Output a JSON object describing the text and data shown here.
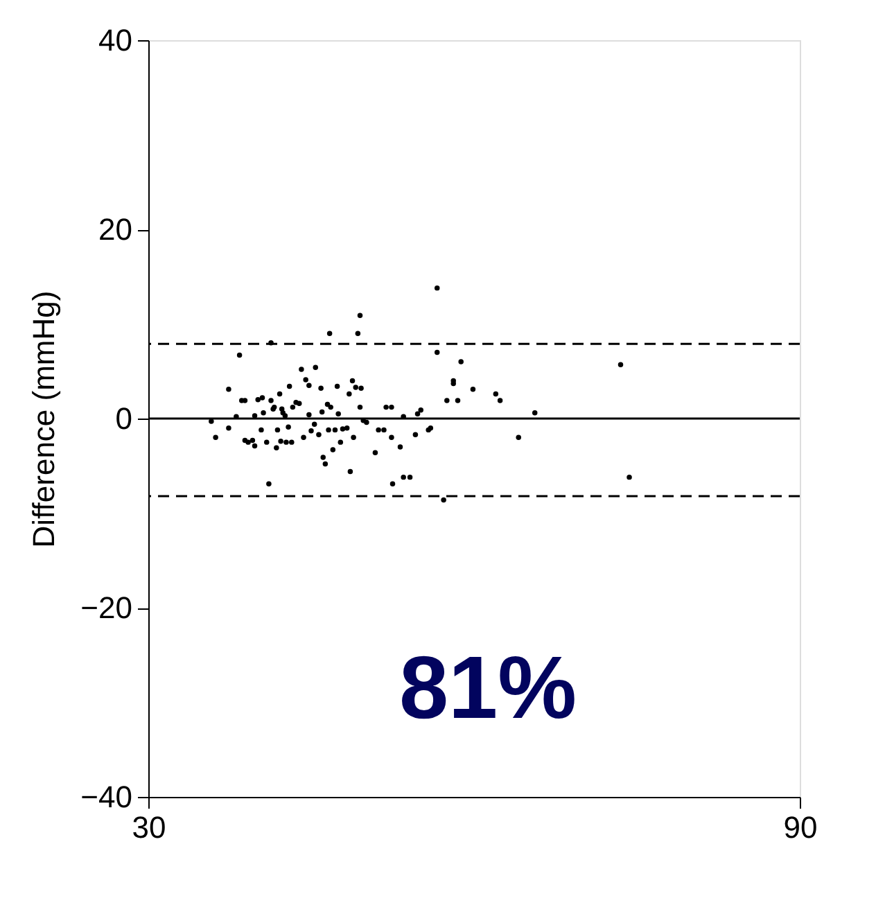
{
  "chart_data": {
    "type": "scatter",
    "ylabel": "Difference (mmHg)",
    "xlim": [
      30,
      90
    ],
    "xticks": [
      30,
      90
    ],
    "ylim": [
      -40,
      40
    ],
    "yticks": [
      -40,
      -20,
      0,
      20,
      40
    ],
    "grid": false,
    "marker": "circle",
    "series": [
      {
        "color": "#000000",
        "x": [
          35.8,
          36.2,
          37.4,
          37.4,
          38.1,
          38.4,
          38.6,
          38.9,
          38.9,
          39.2,
          39.6,
          39.8,
          39.8,
          40.1,
          40.4,
          40.5,
          40.6,
          40.9,
          41.1,
          41.3,
          41.5,
          41.6,
          41.8,
          41.9,
          42.1,
          42.2,
          42.3,
          42.4,
          42.6,
          42.7,
          42.9,
          43.0,
          43.2,
          43.3,
          43.6,
          43.9,
          44.1,
          44.3,
          44.5,
          44.8,
          44.8,
          45.0,
          45.3,
          45.4,
          45.7,
          45.9,
          46.0,
          46.1,
          46.3,
          46.5,
          46.6,
          46.7,
          46.8,
          47.0,
          47.2,
          47.4,
          47.5,
          47.7,
          47.9,
          48.3,
          48.5,
          48.6,
          48.8,
          48.9,
          49.1,
          49.3,
          49.5,
          49.5,
          49.6,
          49.8,
          50.1,
          50.9,
          51.2,
          51.7,
          51.9,
          52.4,
          52.4,
          52.5,
          53.2,
          53.5,
          53.5,
          54.1,
          54.6,
          54.8,
          55.1,
          55.8,
          56.0,
          56.6,
          56.6,
          57.2,
          57.5,
          58.1,
          58.1,
          58.5,
          58.8,
          59.9,
          62.0,
          62.4,
          64.1,
          65.6,
          73.5,
          74.3,
          41.3
        ],
        "values": [
          -0.3,
          -2.0,
          3.1,
          -1.0,
          0.2,
          6.7,
          1.9,
          1.9,
          -2.3,
          -2.5,
          -2.3,
          -2.9,
          0.3,
          2.0,
          -1.2,
          2.2,
          0.6,
          -2.5,
          -6.9,
          1.9,
          1.0,
          1.2,
          -3.1,
          -1.2,
          2.6,
          -2.4,
          1.0,
          0.6,
          0.3,
          -2.5,
          -0.9,
          3.4,
          -2.5,
          1.2,
          1.7,
          1.6,
          5.2,
          -2.0,
          4.1,
          3.5,
          0.4,
          -1.3,
          -0.6,
          5.4,
          -1.7,
          3.2,
          0.7,
          -4.1,
          -4.8,
          1.5,
          -1.2,
          9.0,
          1.2,
          -3.3,
          -1.2,
          3.4,
          0.5,
          -2.5,
          -1.1,
          -1.0,
          2.6,
          -5.6,
          4.0,
          -2.0,
          3.3,
          9.0,
          10.9,
          1.2,
          3.2,
          -0.2,
          -0.4,
          -3.6,
          -1.2,
          -1.2,
          1.2,
          1.2,
          -2.0,
          -6.9,
          -3.0,
          0.2,
          -6.2,
          -6.2,
          -1.7,
          0.5,
          0.9,
          -1.2,
          -1.0,
          13.8,
          7.0,
          -8.6,
          1.9,
          4.0,
          3.7,
          1.9,
          6.0,
          3.1,
          2.6,
          1.9,
          -2.0,
          0.6,
          5.7,
          -6.2,
          8.0
        ]
      }
    ],
    "ref_lines": [
      {
        "axis": "y",
        "value": 7.9,
        "line_style": "dashed",
        "color": "#000000"
      },
      {
        "axis": "y",
        "value": 0,
        "line_style": "solid",
        "color": "#000000"
      },
      {
        "axis": "y",
        "value": -8.2,
        "line_style": "dashed",
        "color": "#000000"
      }
    ],
    "annotations": [
      "81%"
    ]
  }
}
